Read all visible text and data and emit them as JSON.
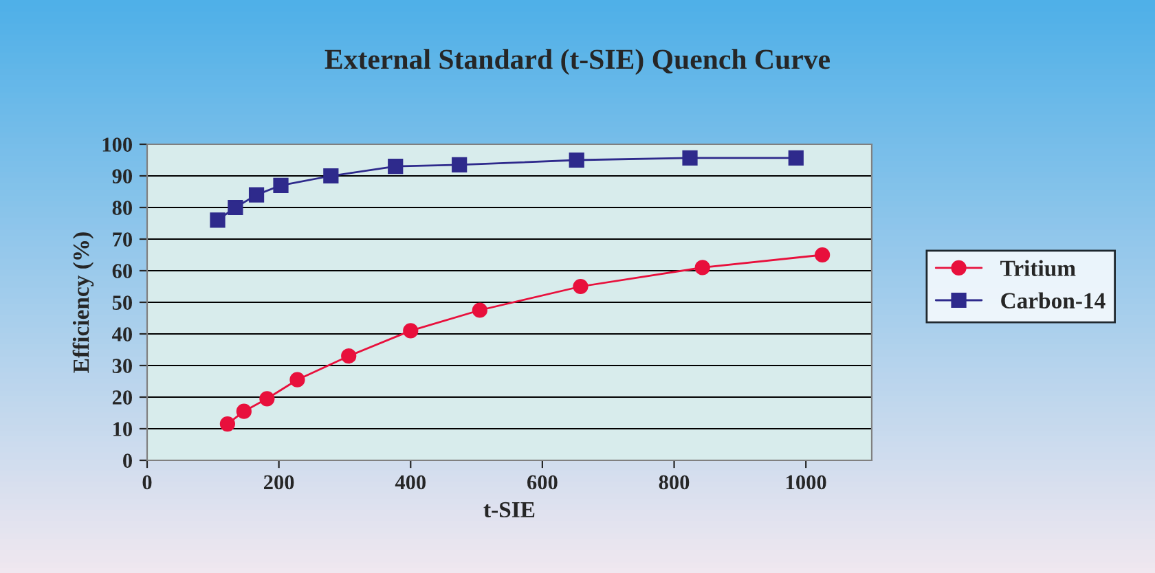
{
  "chart_data": {
    "type": "line",
    "title": "External Standard (t-SIE) Quench Curve",
    "xlabel": "t-SIE",
    "ylabel": "Efficiency (%)",
    "xlim": [
      0,
      1100
    ],
    "xticks": [
      0,
      200,
      400,
      600,
      800,
      1000
    ],
    "ylim": [
      0,
      100
    ],
    "yticks": [
      0,
      10,
      20,
      30,
      40,
      50,
      60,
      70,
      80,
      90,
      100
    ],
    "grid": "y",
    "legend": "right",
    "series": [
      {
        "name": "Tritium",
        "color": "#e8103c",
        "marker": "circle",
        "x": [
          122,
          147,
          182,
          228,
          306,
          400,
          505,
          658,
          843,
          1025
        ],
        "values": [
          11.5,
          15.5,
          19.5,
          25.5,
          33,
          41,
          47.5,
          55,
          61,
          65
        ]
      },
      {
        "name": "Carbon-14",
        "color": "#2e2a8c",
        "marker": "square",
        "x": [
          107,
          134,
          166,
          203,
          279,
          377,
          474,
          652,
          824,
          985
        ],
        "values": [
          76,
          80,
          84,
          87,
          90,
          93,
          93.5,
          95,
          95.7,
          95.7
        ]
      }
    ]
  }
}
